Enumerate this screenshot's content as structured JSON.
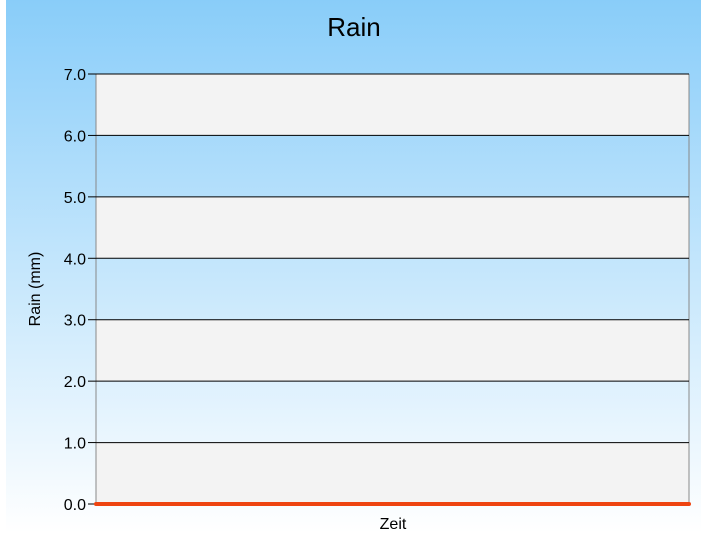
{
  "colors": {
    "background_top": "#89cdf9",
    "background_bottom": "#ffffff",
    "stripe_light": "#f3f3f3",
    "grid_line": "#000000",
    "series_line": "#ee4411"
  },
  "chart_data": {
    "type": "line",
    "title": "Rain",
    "xlabel": "Zeit",
    "ylabel": "Rain (mm)",
    "ylim": [
      0,
      7
    ],
    "y_ticks": [
      "0.0",
      "1.0",
      "2.0",
      "3.0",
      "4.0",
      "5.0",
      "6.0",
      "7.0"
    ],
    "grid": true,
    "legend": "none",
    "series": [
      {
        "values": [
          0,
          0
        ]
      }
    ]
  }
}
